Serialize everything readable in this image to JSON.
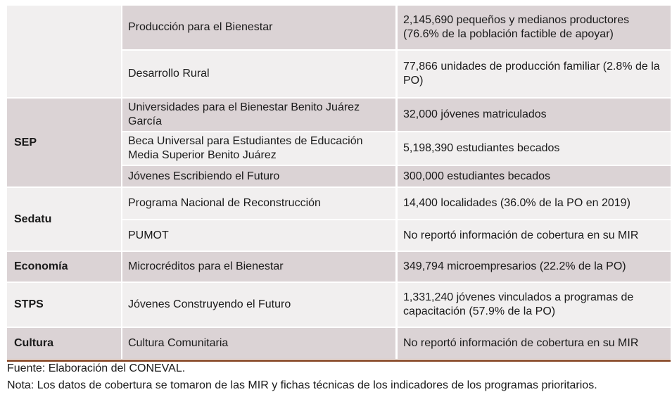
{
  "table": {
    "groups": [
      {
        "rows": [
          {
            "program": "Producción para el Bienestar",
            "coverage": "2,145,690 pequeños y medianos productores (76.6% de la población factible de apoyar)"
          },
          {
            "program": "Desarrollo Rural",
            "coverage": "77,866 unidades de producción familiar (2.8% de la PO)"
          }
        ]
      },
      {
        "label": "SEP",
        "rows": [
          {
            "program": "Universidades para el Bienestar Benito Juárez García",
            "coverage": "32,000 jóvenes matriculados"
          },
          {
            "program": "Beca Universal para Estudiantes de Educación Media Superior Benito Juárez",
            "coverage": "5,198,390 estudiantes becados"
          },
          {
            "program": "Jóvenes Escribiendo el Futuro",
            "coverage": "300,000 estudiantes becados"
          }
        ]
      },
      {
        "label": "Sedatu",
        "rows": [
          {
            "program": "Programa Nacional de Reconstrucción",
            "coverage": "14,400 localidades (36.0% de la PO en 2019)"
          },
          {
            "program": "PUMOT",
            "coverage": "No reportó información de cobertura en su MIR"
          }
        ]
      },
      {
        "label": "Economía",
        "rows": [
          {
            "program": "Microcréditos para el Bienestar",
            "coverage": "349,794 microempresarios (22.2% de la PO)"
          }
        ]
      },
      {
        "label": "STPS",
        "rows": [
          {
            "program": "Jóvenes Construyendo el Futuro",
            "coverage": "1,331,240 jóvenes vinculados a programas de capacitación (57.9% de la PO)"
          }
        ]
      },
      {
        "label": "Cultura",
        "rows": [
          {
            "program": "Cultura Comunitaria",
            "coverage": "No reportó información de cobertura en su MIR"
          }
        ]
      }
    ]
  },
  "footnotes": {
    "source": "Fuente: Elaboración del CONEVAL.",
    "note": "Nota: Los datos de cobertura se tomaron de las MIR y fichas técnicas de los indicadores de los programas prioritarios."
  }
}
